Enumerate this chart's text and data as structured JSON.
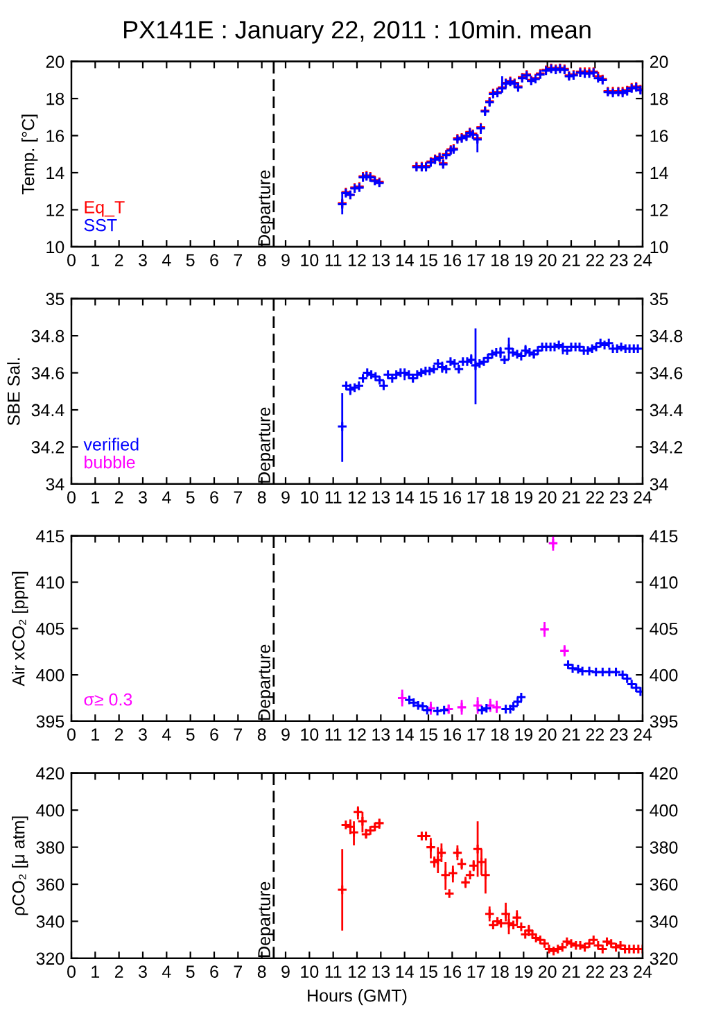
{
  "chart_data": [
    {
      "type": "scatter",
      "title": "PX141E : January 22, 2011 : 10min. mean",
      "ylabel": "Temp. [°C]",
      "xlim": [
        0,
        24
      ],
      "xticks": [
        0,
        1,
        2,
        3,
        4,
        5,
        6,
        7,
        8,
        9,
        10,
        11,
        12,
        13,
        14,
        15,
        16,
        17,
        18,
        19,
        20,
        21,
        22,
        23,
        24
      ],
      "ylim": [
        10,
        20
      ],
      "yticks": [
        10,
        12,
        14,
        16,
        18,
        20
      ],
      "y2lim": [
        10,
        20
      ],
      "y2ticks": [
        10,
        12,
        14,
        16,
        18,
        20
      ],
      "marker": "cross",
      "legend": "bottom left",
      "grid": false,
      "ref_lines": [
        {
          "axis": "x",
          "value": 8.5,
          "label": "Departure",
          "line_style": "dashed",
          "color": "#000000"
        }
      ],
      "x": [
        11.38,
        11.53,
        11.72,
        11.9,
        12.1,
        12.25,
        12.4,
        12.56,
        12.75,
        12.94,
        14.5,
        14.72,
        14.9,
        15.1,
        15.28,
        15.47,
        15.62,
        15.75,
        15.94,
        16.06,
        16.22,
        16.4,
        16.6,
        16.74,
        16.87,
        17.06,
        17.2,
        17.38,
        17.57,
        17.72,
        17.9,
        18.1,
        18.25,
        18.44,
        18.62,
        18.77,
        18.94,
        19.13,
        19.32,
        19.5,
        19.7,
        19.94,
        20.16,
        20.35,
        20.53,
        20.72,
        20.91,
        21.1,
        21.38,
        21.57,
        21.76,
        21.94,
        22.13,
        22.32,
        22.54,
        22.75,
        22.98,
        23.16,
        23.35,
        23.54,
        23.73,
        23.91
      ],
      "series": [
        {
          "name": "Eq_T",
          "color": "#ff0000",
          "values": [
            12.35,
            12.95,
            12.8,
            13.2,
            13.25,
            13.8,
            13.85,
            13.8,
            13.6,
            13.5,
            14.35,
            14.35,
            14.35,
            14.6,
            14.75,
            14.85,
            14.5,
            15.0,
            15.25,
            15.3,
            15.85,
            15.9,
            16.0,
            16.2,
            16.1,
            15.85,
            16.45,
            17.35,
            17.85,
            18.3,
            18.35,
            18.6,
            18.85,
            18.95,
            18.85,
            18.65,
            19.15,
            19.3,
            19.0,
            19.1,
            19.35,
            19.55,
            19.65,
            19.6,
            19.65,
            19.6,
            19.25,
            19.3,
            19.45,
            19.45,
            19.45,
            19.45,
            19.2,
            19.05,
            18.4,
            18.4,
            18.4,
            18.4,
            18.45,
            18.6,
            18.65,
            18.5
          ]
        },
        {
          "name": "SST",
          "color": "#0000ff",
          "values": [
            12.3,
            12.9,
            12.8,
            13.15,
            13.2,
            13.75,
            13.8,
            13.75,
            13.55,
            13.45,
            14.3,
            14.3,
            14.3,
            14.55,
            14.7,
            14.8,
            14.45,
            14.95,
            15.2,
            15.25,
            15.8,
            15.85,
            15.95,
            16.15,
            16.05,
            15.8,
            16.4,
            17.3,
            17.8,
            18.25,
            18.3,
            18.55,
            18.8,
            18.9,
            18.8,
            18.6,
            19.1,
            19.25,
            18.95,
            19.05,
            19.3,
            19.5,
            19.6,
            19.55,
            19.6,
            19.55,
            19.2,
            19.25,
            19.4,
            19.35,
            19.35,
            19.4,
            19.1,
            19.0,
            18.35,
            18.3,
            18.35,
            18.3,
            18.4,
            18.55,
            18.6,
            18.45
          ],
          "errors": [
            [
              11.75,
              12.95
            ],
            null,
            null,
            null,
            null,
            null,
            null,
            null,
            null,
            null,
            null,
            null,
            null,
            null,
            null,
            null,
            null,
            [
              14.8,
              15.1
            ],
            null,
            null,
            [
              15.7,
              15.95
            ],
            null,
            null,
            null,
            null,
            [
              15.1,
              16.05
            ],
            [
              16.1,
              16.6
            ],
            [
              17.1,
              17.55
            ],
            [
              17.6,
              18.0
            ],
            null,
            null,
            [
              18.4,
              19.2
            ],
            [
              18.65,
              19.05
            ],
            null,
            null,
            [
              18.4,
              18.8
            ],
            null,
            null,
            null,
            null,
            null,
            null,
            null,
            null,
            null,
            null,
            [
              19.05,
              19.35
            ],
            null,
            null,
            null,
            null,
            null,
            null,
            null,
            [
              18.2,
              18.5
            ],
            null,
            null,
            null,
            null,
            null,
            null,
            null
          ]
        }
      ]
    },
    {
      "type": "scatter",
      "ylabel": "SBE Sal.",
      "xlim": [
        0,
        24
      ],
      "xticks": [
        0,
        1,
        2,
        3,
        4,
        5,
        6,
        7,
        8,
        9,
        10,
        11,
        12,
        13,
        14,
        15,
        16,
        17,
        18,
        19,
        20,
        21,
        22,
        23,
        24
      ],
      "ylim": [
        34,
        35
      ],
      "yticks": [
        34,
        34.2,
        34.4,
        34.6,
        34.8,
        35
      ],
      "y2lim": [
        34,
        35
      ],
      "y2ticks": [
        34,
        34.2,
        34.4,
        34.6,
        34.8,
        35
      ],
      "marker": "cross",
      "legend": "bottom left",
      "grid": false,
      "ref_lines": [
        {
          "axis": "x",
          "value": 8.5,
          "label": "Departure",
          "line_style": "dashed",
          "color": "#000000"
        }
      ],
      "x": [
        11.38,
        11.55,
        11.72,
        11.9,
        12.08,
        12.25,
        12.43,
        12.6,
        12.78,
        12.95,
        13.12,
        13.3,
        13.48,
        13.65,
        13.83,
        14.0,
        14.18,
        14.35,
        14.53,
        14.7,
        14.88,
        15.05,
        15.23,
        15.4,
        15.58,
        15.75,
        15.93,
        16.1,
        16.28,
        16.45,
        16.63,
        16.8,
        16.98,
        17.15,
        17.33,
        17.5,
        17.68,
        17.85,
        18.03,
        18.2,
        18.38,
        18.55,
        18.73,
        18.9,
        19.08,
        19.25,
        19.43,
        19.6,
        19.78,
        19.95,
        20.13,
        20.3,
        20.48,
        20.65,
        20.83,
        21.0,
        21.18,
        21.35,
        21.53,
        21.7,
        21.88,
        22.05,
        22.23,
        22.4,
        22.58,
        22.75,
        22.93,
        23.1,
        23.28,
        23.45,
        23.63,
        23.8
      ],
      "series": [
        {
          "name": "verified",
          "color": "#0000ff",
          "values": [
            34.31,
            34.53,
            34.51,
            34.52,
            34.53,
            34.57,
            34.6,
            34.59,
            34.58,
            34.56,
            34.53,
            34.59,
            34.57,
            34.59,
            34.6,
            34.6,
            34.59,
            34.57,
            34.59,
            34.6,
            34.61,
            34.61,
            34.62,
            34.65,
            34.63,
            34.62,
            34.66,
            34.65,
            34.62,
            34.66,
            34.66,
            34.67,
            34.64,
            34.65,
            34.66,
            34.68,
            34.7,
            34.71,
            34.71,
            34.67,
            34.73,
            34.71,
            34.7,
            34.69,
            34.72,
            34.71,
            34.7,
            34.72,
            34.74,
            34.74,
            34.74,
            34.74,
            34.75,
            34.74,
            34.72,
            34.74,
            34.74,
            34.74,
            34.72,
            34.72,
            34.73,
            34.74,
            34.76,
            34.75,
            34.76,
            34.73,
            34.73,
            34.74,
            34.73,
            34.73,
            34.73,
            34.73
          ],
          "errors": [
            [
              34.12,
              34.49
            ],
            null,
            [
              34.48,
              34.54
            ],
            null,
            null,
            [
              34.55,
              34.59
            ],
            null,
            null,
            null,
            null,
            [
              34.51,
              34.56
            ],
            null,
            null,
            null,
            null,
            [
              34.56,
              34.61
            ],
            null,
            [
              34.55,
              34.59
            ],
            null,
            null,
            null,
            null,
            null,
            null,
            [
              34.6,
              34.66
            ],
            null,
            null,
            null,
            [
              34.6,
              34.64
            ],
            null,
            null,
            [
              34.65,
              34.7
            ],
            [
              34.43,
              34.84
            ],
            null,
            null,
            null,
            null,
            null,
            [
              34.68,
              34.74
            ],
            null,
            [
              34.67,
              34.79
            ],
            null,
            null,
            null,
            [
              34.69,
              34.75
            ],
            null,
            [
              34.68,
              34.72
            ],
            null,
            null,
            null,
            null,
            null,
            null,
            [
              34.7,
              34.74
            ],
            null,
            null,
            null,
            null,
            null,
            null,
            null,
            null,
            null,
            null,
            null,
            null,
            null,
            null,
            null,
            null,
            null,
            null
          ]
        },
        {
          "name": "bubble",
          "color": "#ff00ff",
          "values": [
            null,
            null,
            null,
            null,
            null,
            null,
            null,
            null,
            null,
            null,
            null,
            null,
            null,
            null,
            null,
            null,
            null,
            null,
            null,
            null,
            null,
            null,
            null,
            null,
            null,
            null,
            null,
            null,
            null,
            null,
            null,
            null,
            null,
            null,
            null,
            null,
            null,
            null,
            null,
            null,
            null,
            null,
            null,
            null,
            null,
            null,
            null,
            null,
            null,
            null,
            null,
            null,
            null,
            null,
            null,
            null,
            null,
            null,
            null,
            null,
            null,
            null,
            null,
            null,
            null,
            null,
            null,
            null,
            null,
            null,
            null,
            null
          ]
        }
      ]
    },
    {
      "type": "scatter",
      "ylabel": "Air xCO₂ [ppm]",
      "xlim": [
        0,
        24
      ],
      "xticks": [
        0,
        1,
        2,
        3,
        4,
        5,
        6,
        7,
        8,
        9,
        10,
        11,
        12,
        13,
        14,
        15,
        16,
        17,
        18,
        19,
        20,
        21,
        22,
        23,
        24
      ],
      "ylim": [
        395,
        415
      ],
      "yticks": [
        395,
        400,
        405,
        410,
        415
      ],
      "y2lim": [
        395,
        415
      ],
      "y2ticks": [
        395,
        400,
        405,
        410,
        415
      ],
      "marker": "cross",
      "legend": "bottom left",
      "grid": false,
      "ref_lines": [
        {
          "axis": "x",
          "value": 8.5,
          "label": "Departure",
          "line_style": "dashed",
          "color": "#000000"
        }
      ],
      "series": [
        {
          "name": "σ≥ 0.3",
          "color": "#ff00ff",
          "x": [
            13.9,
            15.1,
            15.85,
            16.4,
            17.07,
            17.6,
            17.87,
            19.88,
            20.24,
            20.72
          ],
          "values": [
            397.5,
            396.4,
            396.3,
            396.5,
            396.7,
            396.7,
            396.5,
            404.9,
            414.2,
            402.6
          ],
          "errors": [
            [
              396.6,
              398.4
            ],
            [
              395.7,
              397.1
            ],
            [
              395.8,
              396.8
            ],
            [
              395.7,
              397.3
            ],
            [
              395.8,
              397.6
            ],
            [
              396.0,
              397.4
            ],
            [
              395.9,
              397.2
            ],
            [
              404.1,
              405.7
            ],
            [
              413.4,
              415.0
            ],
            [
              402.0,
              403.2
            ]
          ]
        },
        {
          "color": "#0000ff",
          "x": [
            14.2,
            14.38,
            14.57,
            14.76,
            14.95,
            15.38,
            15.66,
            17.25,
            17.44,
            18.25,
            18.44,
            18.57,
            18.75,
            18.9,
            20.87,
            21.06,
            21.29,
            21.47,
            21.76,
            22.04,
            22.32,
            22.6,
            22.88,
            23.16,
            23.35,
            23.54,
            23.73,
            23.91
          ],
          "values": [
            397.3,
            397.0,
            396.7,
            396.6,
            396.2,
            396.1,
            396.2,
            396.2,
            396.4,
            396.3,
            396.3,
            396.6,
            397.1,
            397.6,
            401.1,
            400.7,
            400.6,
            400.4,
            400.4,
            400.3,
            400.3,
            400.3,
            400.3,
            400.0,
            399.6,
            399.0,
            398.6,
            398.2
          ]
        }
      ]
    },
    {
      "type": "scatter",
      "ylabel": "ρCO₂ [μ atm]",
      "xlabel": "Hours (GMT)",
      "xlim": [
        0,
        24
      ],
      "xticks": [
        0,
        1,
        2,
        3,
        4,
        5,
        6,
        7,
        8,
        9,
        10,
        11,
        12,
        13,
        14,
        15,
        16,
        17,
        18,
        19,
        20,
        21,
        22,
        23,
        24
      ],
      "ylim": [
        320,
        420
      ],
      "yticks": [
        320,
        340,
        360,
        380,
        400,
        420
      ],
      "y2lim": [
        320,
        420
      ],
      "y2ticks": [
        320,
        340,
        360,
        380,
        400,
        420
      ],
      "marker": "cross",
      "grid": false,
      "ref_lines": [
        {
          "axis": "x",
          "value": 8.5,
          "label": "Departure",
          "line_style": "dashed",
          "color": "#000000"
        }
      ],
      "x": [
        11.38,
        11.53,
        11.72,
        11.87,
        12.04,
        12.23,
        12.38,
        12.56,
        12.75,
        12.94,
        14.72,
        14.9,
        15.1,
        15.25,
        15.4,
        15.55,
        15.72,
        15.88,
        16.03,
        16.22,
        16.4,
        16.56,
        16.75,
        16.9,
        17.07,
        17.23,
        17.4,
        17.57,
        17.72,
        17.9,
        18.05,
        18.25,
        18.38,
        18.57,
        18.72,
        18.9,
        19.07,
        19.22,
        19.37,
        19.52,
        19.7,
        19.88,
        20.07,
        20.26,
        20.44,
        20.63,
        20.82,
        21.0,
        21.2,
        21.38,
        21.57,
        21.76,
        21.94,
        22.13,
        22.32,
        22.5,
        22.68,
        22.88,
        23.07,
        23.26,
        23.44,
        23.63,
        23.82,
        24.0
      ],
      "series": [
        {
          "color": "#ff0000",
          "values": [
            357,
            392,
            391,
            388,
            399,
            394,
            387,
            389,
            391,
            393,
            386,
            386,
            380,
            372,
            373,
            377,
            365,
            355,
            366,
            377,
            371,
            361,
            365,
            370,
            379,
            372,
            365,
            344,
            338,
            340,
            339,
            344,
            339,
            338,
            342,
            337,
            333,
            335,
            333,
            331,
            330,
            328,
            325,
            324,
            325,
            326,
            329,
            328,
            327,
            327,
            326,
            328,
            330,
            327,
            325,
            329,
            328,
            326,
            327,
            325,
            325,
            325,
            325,
            325
          ],
          "errors": [
            [
              335,
              379
            ],
            null,
            [
              387,
              395
            ],
            [
              381,
              394
            ],
            [
              395,
              402
            ],
            [
              388,
              399
            ],
            [
              385,
              390
            ],
            null,
            null,
            [
              390,
              395
            ],
            null,
            null,
            [
              374,
              385
            ],
            [
              369,
              375
            ],
            [
              366,
              380
            ],
            [
              372,
              382
            ],
            [
              357,
              372
            ],
            null,
            [
              361,
              370
            ],
            [
              373,
              381
            ],
            [
              368,
              374
            ],
            [
              358,
              364
            ],
            null,
            [
              367,
              373
            ],
            [
              364,
              394
            ],
            [
              365,
              379
            ],
            [
              355,
              374
            ],
            [
              340,
              348
            ],
            null,
            [
              338,
              342
            ],
            null,
            [
              340,
              350
            ],
            [
              333,
              344
            ],
            null,
            [
              338,
              346
            ],
            null,
            null,
            [
              332,
              338
            ],
            null,
            null,
            null,
            null,
            null,
            null,
            null,
            null,
            null,
            null,
            null,
            null,
            null,
            null,
            null,
            null,
            null,
            null,
            null,
            null,
            null,
            null,
            null,
            null,
            null,
            null
          ]
        }
      ]
    }
  ]
}
